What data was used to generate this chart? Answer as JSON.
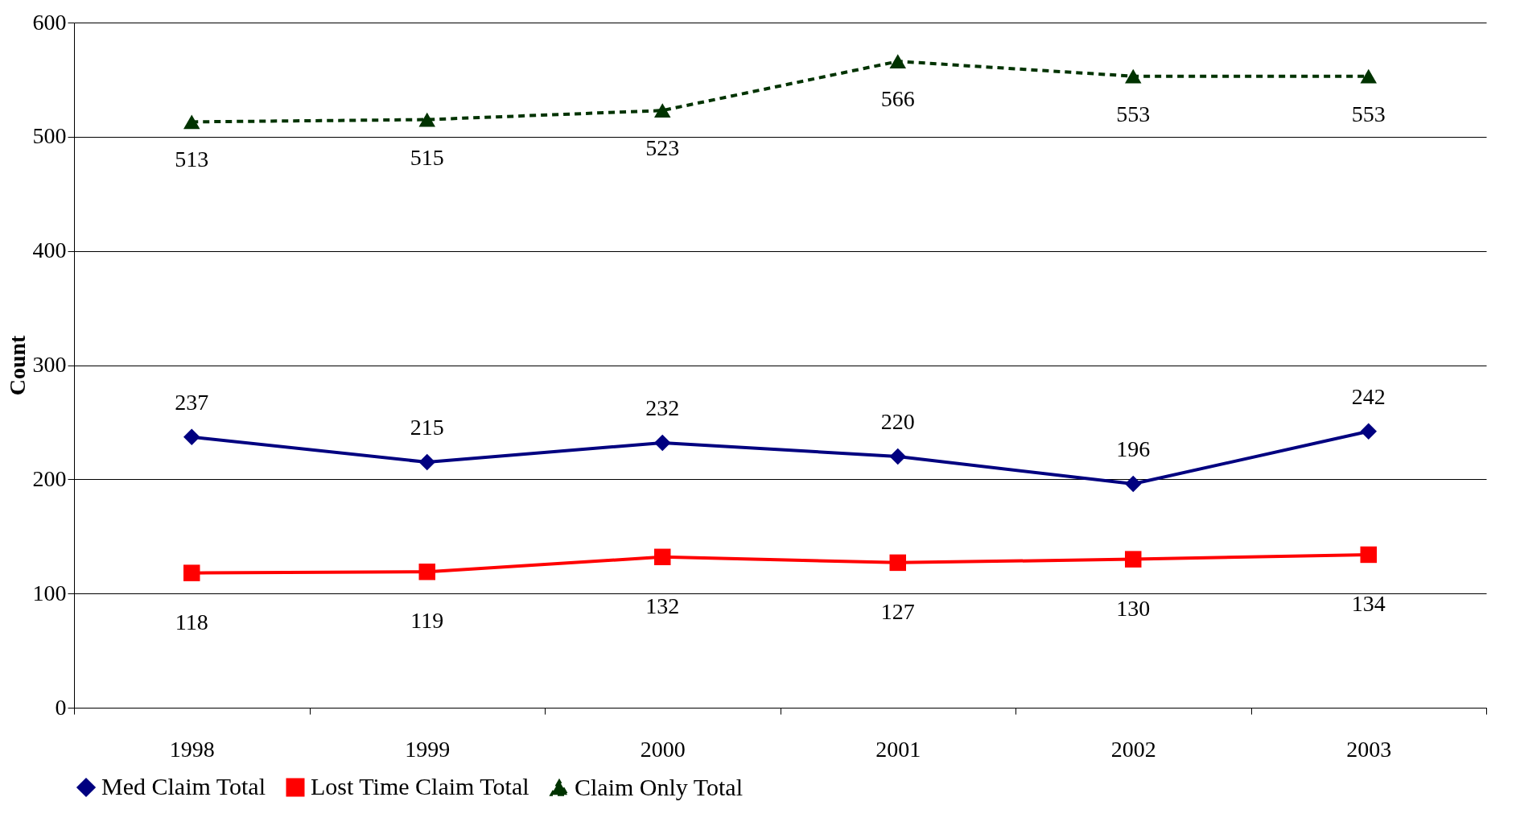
{
  "chart_data": {
    "type": "line",
    "ylabel": "Count",
    "categories": [
      "1998",
      "1999",
      "2000",
      "2001",
      "2002",
      "2003"
    ],
    "series": [
      {
        "name": "Med Claim Total",
        "color": "#000080",
        "marker": "diamond",
        "line_style": "solid",
        "values": [
          237,
          215,
          232,
          220,
          196,
          242
        ]
      },
      {
        "name": "Lost Time Claim Total",
        "color": "#ff0000",
        "marker": "square",
        "line_style": "solid",
        "values": [
          118,
          119,
          132,
          127,
          130,
          134
        ]
      },
      {
        "name": "Claim Only Total",
        "color": "#003300",
        "marker": "triangle",
        "line_style": "dashed",
        "values": [
          513,
          515,
          523,
          566,
          553,
          553
        ]
      }
    ],
    "ylim": [
      0,
      600
    ],
    "yticks": [
      0,
      100,
      200,
      300,
      400,
      500,
      600
    ],
    "grid": "y",
    "legend": "bottom",
    "data_labels": true
  }
}
